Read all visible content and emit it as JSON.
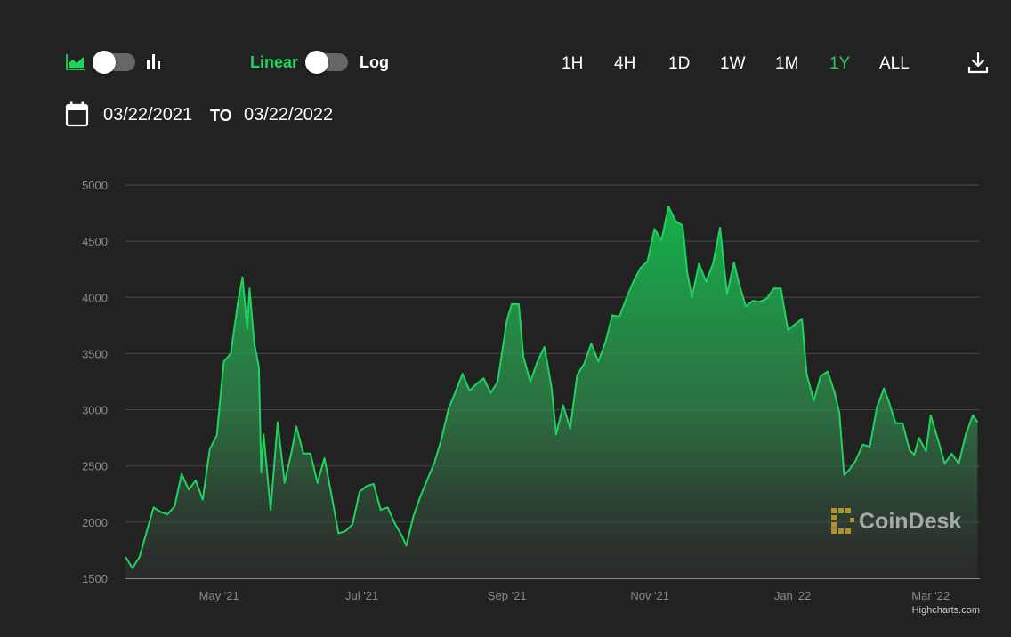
{
  "toolbar": {
    "scale_linear_label": "Linear",
    "scale_log_label": "Log",
    "ranges": [
      "1H",
      "4H",
      "1D",
      "1W",
      "1M",
      "1Y",
      "ALL"
    ],
    "active_range": "1Y",
    "date_from": "03/22/2021",
    "date_separator": "TO",
    "date_to": "03/22/2022",
    "icons": [
      "area-chart-icon",
      "bar-chart-icon",
      "download-icon",
      "calendar-icon"
    ],
    "accent_color": "#1fd35f"
  },
  "watermark": "CoinDesk",
  "credits": "Highcharts.com",
  "chart_data": {
    "type": "area",
    "scale": "linear",
    "y_ticks": [
      1500,
      2000,
      2500,
      3000,
      3500,
      4000,
      4500,
      5000
    ],
    "ylim": [
      1500,
      5000
    ],
    "x_tick_labels": [
      "May '21",
      "Jul '21",
      "Sep '21",
      "Nov '21",
      "Jan '22",
      "Mar '22"
    ],
    "x_ticks": [
      "2021-05-01",
      "2021-07-01",
      "2021-09-01",
      "2021-11-01",
      "2022-01-01",
      "2022-03-01"
    ],
    "xlim": [
      "2021-03-22",
      "2022-03-22"
    ],
    "grid": true,
    "line_color": "#1fd35f",
    "series": [
      {
        "points": [
          [
            "2021-03-22",
            1690
          ],
          [
            "2021-03-25",
            1590
          ],
          [
            "2021-03-28",
            1690
          ],
          [
            "2021-03-31",
            1910
          ],
          [
            "2021-04-03",
            2130
          ],
          [
            "2021-04-06",
            2090
          ],
          [
            "2021-04-09",
            2070
          ],
          [
            "2021-04-12",
            2140
          ],
          [
            "2021-04-15",
            2430
          ],
          [
            "2021-04-18",
            2290
          ],
          [
            "2021-04-21",
            2370
          ],
          [
            "2021-04-24",
            2200
          ],
          [
            "2021-04-27",
            2650
          ],
          [
            "2021-04-30",
            2770
          ],
          [
            "2021-05-03",
            3430
          ],
          [
            "2021-05-06",
            3500
          ],
          [
            "2021-05-09",
            3950
          ],
          [
            "2021-05-11",
            4180
          ],
          [
            "2021-05-13",
            3720
          ],
          [
            "2021-05-14",
            4080
          ],
          [
            "2021-05-16",
            3590
          ],
          [
            "2021-05-18",
            3380
          ],
          [
            "2021-05-19",
            2440
          ],
          [
            "2021-05-20",
            2780
          ],
          [
            "2021-05-23",
            2110
          ],
          [
            "2021-05-26",
            2890
          ],
          [
            "2021-05-29",
            2350
          ],
          [
            "2021-06-01",
            2630
          ],
          [
            "2021-06-03",
            2850
          ],
          [
            "2021-06-06",
            2610
          ],
          [
            "2021-06-09",
            2610
          ],
          [
            "2021-06-12",
            2350
          ],
          [
            "2021-06-15",
            2570
          ],
          [
            "2021-06-18",
            2240
          ],
          [
            "2021-06-21",
            1900
          ],
          [
            "2021-06-24",
            1920
          ],
          [
            "2021-06-27",
            1980
          ],
          [
            "2021-06-30",
            2270
          ],
          [
            "2021-07-03",
            2320
          ],
          [
            "2021-07-06",
            2340
          ],
          [
            "2021-07-09",
            2110
          ],
          [
            "2021-07-12",
            2130
          ],
          [
            "2021-07-15",
            1990
          ],
          [
            "2021-07-18",
            1880
          ],
          [
            "2021-07-20",
            1790
          ],
          [
            "2021-07-23",
            2050
          ],
          [
            "2021-07-26",
            2230
          ],
          [
            "2021-07-29",
            2380
          ],
          [
            "2021-08-01",
            2530
          ],
          [
            "2021-08-04",
            2740
          ],
          [
            "2021-08-07",
            3010
          ],
          [
            "2021-08-10",
            3160
          ],
          [
            "2021-08-13",
            3320
          ],
          [
            "2021-08-16",
            3170
          ],
          [
            "2021-08-19",
            3230
          ],
          [
            "2021-08-22",
            3280
          ],
          [
            "2021-08-25",
            3150
          ],
          [
            "2021-08-28",
            3250
          ],
          [
            "2021-09-01",
            3800
          ],
          [
            "2021-09-03",
            3940
          ],
          [
            "2021-09-06",
            3940
          ],
          [
            "2021-09-08",
            3470
          ],
          [
            "2021-09-11",
            3250
          ],
          [
            "2021-09-14",
            3430
          ],
          [
            "2021-09-17",
            3560
          ],
          [
            "2021-09-20",
            3200
          ],
          [
            "2021-09-22",
            2780
          ],
          [
            "2021-09-25",
            3040
          ],
          [
            "2021-09-28",
            2830
          ],
          [
            "2021-10-01",
            3310
          ],
          [
            "2021-10-04",
            3410
          ],
          [
            "2021-10-07",
            3590
          ],
          [
            "2021-10-10",
            3430
          ],
          [
            "2021-10-13",
            3600
          ],
          [
            "2021-10-16",
            3840
          ],
          [
            "2021-10-19",
            3830
          ],
          [
            "2021-10-22",
            3990
          ],
          [
            "2021-10-25",
            4140
          ],
          [
            "2021-10-28",
            4260
          ],
          [
            "2021-10-31",
            4320
          ],
          [
            "2021-11-03",
            4610
          ],
          [
            "2021-11-06",
            4510
          ],
          [
            "2021-11-09",
            4810
          ],
          [
            "2021-11-12",
            4680
          ],
          [
            "2021-11-15",
            4640
          ],
          [
            "2021-11-17",
            4220
          ],
          [
            "2021-11-19",
            4000
          ],
          [
            "2021-11-22",
            4300
          ],
          [
            "2021-11-25",
            4140
          ],
          [
            "2021-11-28",
            4300
          ],
          [
            "2021-12-01",
            4620
          ],
          [
            "2021-12-04",
            4030
          ],
          [
            "2021-12-07",
            4310
          ],
          [
            "2021-12-09",
            4130
          ],
          [
            "2021-12-12",
            3920
          ],
          [
            "2021-12-15",
            3970
          ],
          [
            "2021-12-18",
            3960
          ],
          [
            "2021-12-21",
            3990
          ],
          [
            "2021-12-24",
            4080
          ],
          [
            "2021-12-27",
            4080
          ],
          [
            "2021-12-30",
            3710
          ],
          [
            "2022-01-02",
            3760
          ],
          [
            "2022-01-05",
            3810
          ],
          [
            "2022-01-07",
            3320
          ],
          [
            "2022-01-10",
            3080
          ],
          [
            "2022-01-13",
            3300
          ],
          [
            "2022-01-16",
            3340
          ],
          [
            "2022-01-19",
            3150
          ],
          [
            "2022-01-21",
            2970
          ],
          [
            "2022-01-23",
            2420
          ],
          [
            "2022-01-25",
            2460
          ],
          [
            "2022-01-28",
            2550
          ],
          [
            "2022-01-31",
            2690
          ],
          [
            "2022-02-03",
            2670
          ],
          [
            "2022-02-06",
            3020
          ],
          [
            "2022-02-09",
            3190
          ],
          [
            "2022-02-11",
            3080
          ],
          [
            "2022-02-14",
            2880
          ],
          [
            "2022-02-17",
            2880
          ],
          [
            "2022-02-20",
            2640
          ],
          [
            "2022-02-22",
            2600
          ],
          [
            "2022-02-24",
            2750
          ],
          [
            "2022-02-27",
            2630
          ],
          [
            "2022-03-01",
            2950
          ],
          [
            "2022-03-04",
            2740
          ],
          [
            "2022-03-07",
            2520
          ],
          [
            "2022-03-10",
            2610
          ],
          [
            "2022-03-13",
            2520
          ],
          [
            "2022-03-16",
            2780
          ],
          [
            "2022-03-19",
            2950
          ],
          [
            "2022-03-21",
            2890
          ]
        ]
      }
    ]
  }
}
